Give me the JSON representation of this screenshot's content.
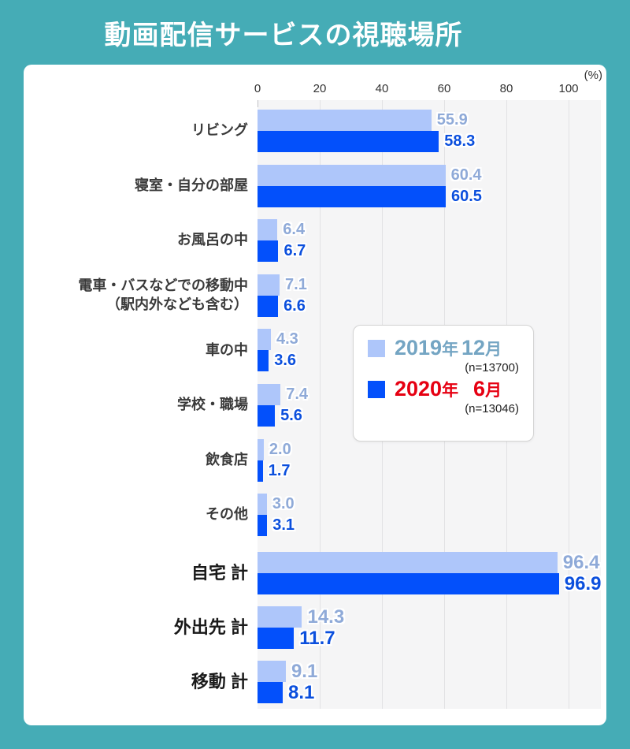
{
  "page": {
    "title": "動画配信サービスの視聴場所"
  },
  "axis": {
    "unit": "(%)",
    "ticks": [
      "0",
      "20",
      "40",
      "60",
      "80",
      "100"
    ]
  },
  "legend": {
    "items": [
      {
        "id": "2019-12",
        "year": "2019",
        "year_unit": "年",
        "month": "12",
        "month_unit": "月",
        "n_label": "(n=13700)",
        "swatch_color": "#aec6fa",
        "text_color": "#74a5c3"
      },
      {
        "id": "2020-06",
        "year": "2020",
        "year_unit": "年",
        "month": "6",
        "month_unit": "月",
        "n_label": "(n=13046)",
        "swatch_color": "#0350fb",
        "text_color": "#e60012"
      }
    ]
  },
  "chart_data": {
    "type": "bar",
    "orientation": "horizontal",
    "title": "動画配信サービスの視聴場所",
    "xlabel": "(%)",
    "xlim": [
      0,
      100
    ],
    "x_ticks": [
      0,
      20,
      40,
      60,
      80,
      100
    ],
    "grid": true,
    "legend_position": "middle-right",
    "series": [
      {
        "name": "2019年12月",
        "n": "n=13700",
        "color": "#aec6fa"
      },
      {
        "name": "2020年 6月",
        "n": "n=13046",
        "color": "#0350fb"
      }
    ],
    "rows": [
      {
        "label_lines": [
          "リビング"
        ],
        "values": [
          55.9,
          58.3
        ],
        "total": false
      },
      {
        "label_lines": [
          "寝室・自分の部屋"
        ],
        "values": [
          60.4,
          60.5
        ],
        "total": false
      },
      {
        "label_lines": [
          "お風呂の中"
        ],
        "values": [
          6.4,
          6.7
        ],
        "total": false
      },
      {
        "label_lines": [
          "電車・バスなどでの移動中",
          "（駅内外なども含む）"
        ],
        "values": [
          7.1,
          6.6
        ],
        "total": false
      },
      {
        "label_lines": [
          "車の中"
        ],
        "values": [
          4.3,
          3.6
        ],
        "total": false
      },
      {
        "label_lines": [
          "学校・職場"
        ],
        "values": [
          7.4,
          5.6
        ],
        "total": false
      },
      {
        "label_lines": [
          "飲食店"
        ],
        "values": [
          2.0,
          1.7
        ],
        "total": false
      },
      {
        "label_lines": [
          "その他"
        ],
        "values": [
          3.0,
          3.1
        ],
        "total": false
      },
      {
        "label_lines": [
          "自宅 計"
        ],
        "values": [
          96.4,
          96.9
        ],
        "total": true
      },
      {
        "label_lines": [
          "外出先 計"
        ],
        "values": [
          14.3,
          11.7
        ],
        "total": true
      },
      {
        "label_lines": [
          "移動 計"
        ],
        "values": [
          9.1,
          8.1
        ],
        "total": true
      }
    ]
  }
}
